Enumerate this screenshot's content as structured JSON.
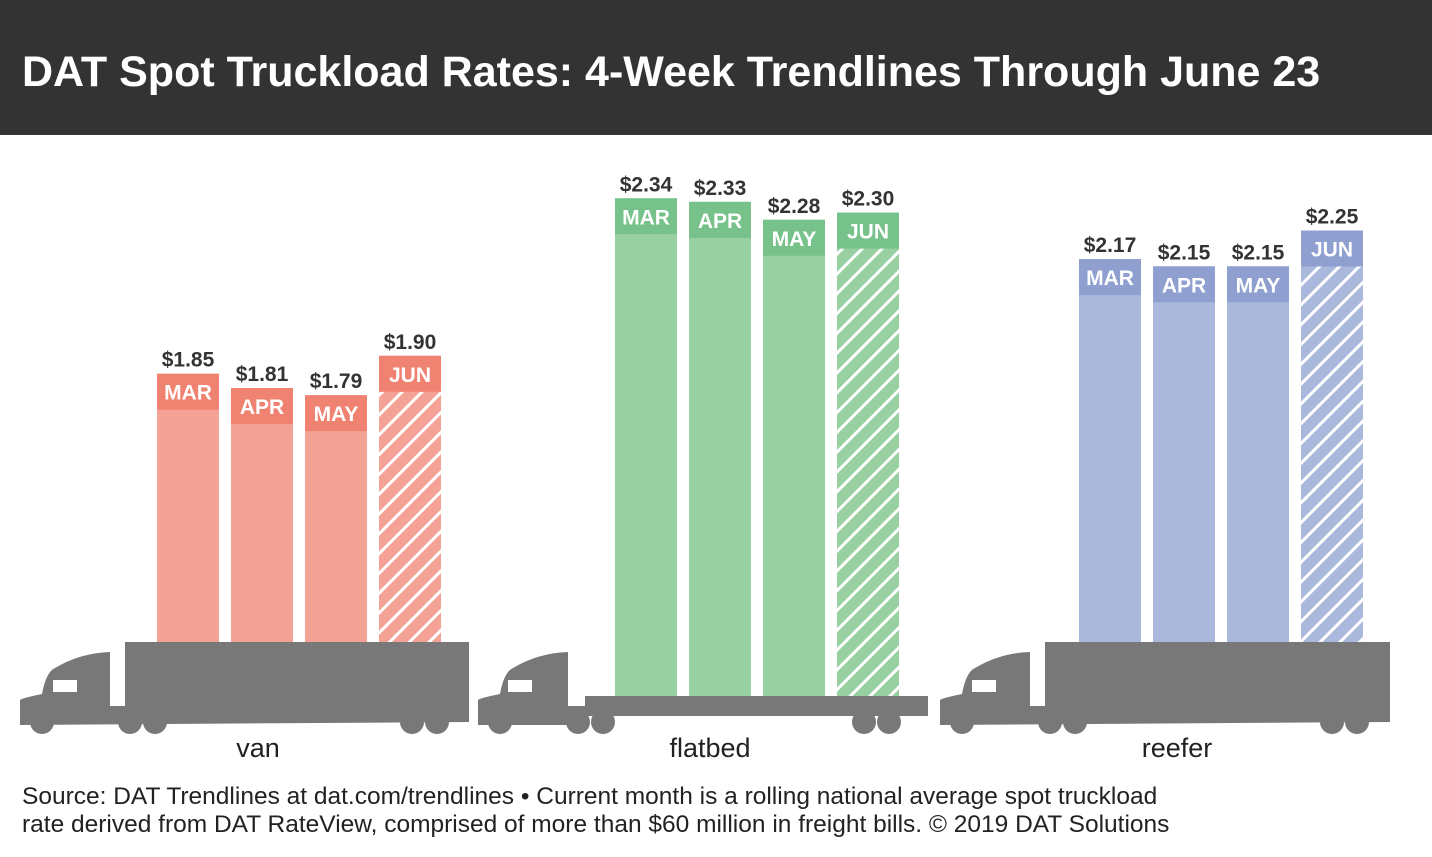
{
  "header": {
    "title": "DAT Spot Truckload Rates: 4-Week Trendlines Through June 23"
  },
  "chart_data": {
    "type": "bar",
    "title": "DAT Spot Truckload Rates: 4-Week Trendlines Through June 23",
    "categories": [
      "MAR",
      "APR",
      "MAY",
      "JUN"
    ],
    "series": [
      {
        "name": "van",
        "values": [
          1.85,
          1.81,
          1.79,
          1.9
        ],
        "labels": [
          "$1.85",
          "$1.81",
          "$1.79",
          "$1.90"
        ],
        "color": "#f4a196",
        "band": "#f08272"
      },
      {
        "name": "flatbed",
        "values": [
          2.34,
          2.33,
          2.28,
          2.3
        ],
        "labels": [
          "$2.34",
          "$2.33",
          "$2.28",
          "$2.30"
        ],
        "color": "#98d0a2",
        "band": "#77c28a"
      },
      {
        "name": "reefer",
        "values": [
          2.17,
          2.15,
          2.15,
          2.25
        ],
        "labels": [
          "$2.17",
          "$2.15",
          "$2.15",
          "$2.25"
        ],
        "color": "#aab8dc",
        "band": "#8e9fd0"
      }
    ],
    "current_month_hatched": "JUN",
    "units": "USD per mile"
  },
  "footer": {
    "line1": "Source: DAT Trendlines at dat.com/trendlines • Current month is a rolling national average spot truckload",
    "line2": "rate derived from DAT RateView, comprised of more than $60 million in freight bills. © 2019 DAT Solutions"
  }
}
